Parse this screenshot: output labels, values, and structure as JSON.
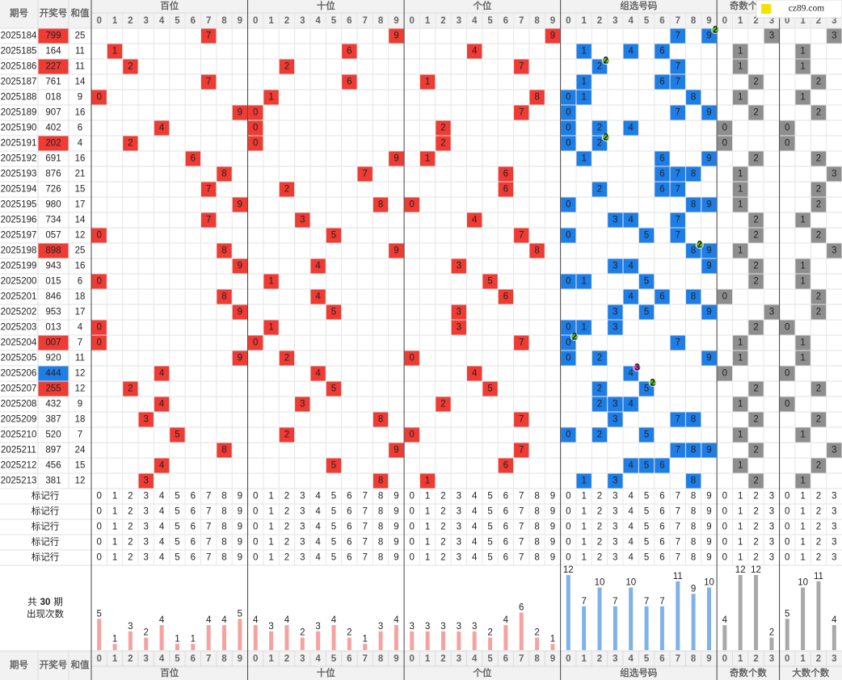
{
  "header": {
    "period": "期号",
    "number": "开奖号",
    "sum": "和值"
  },
  "groups": [
    {
      "name": "百位",
      "field": "hundreds",
      "digits": [
        0,
        1,
        2,
        3,
        4,
        5,
        6,
        7,
        8,
        9
      ],
      "counts": [
        5,
        1,
        3,
        2,
        4,
        1,
        1,
        4,
        4,
        5
      ],
      "color": "#ee3b34",
      "bar_color": "#f4a3a1",
      "text_color": "#e8554f"
    },
    {
      "name": "十位",
      "field": "tens",
      "digits": [
        0,
        1,
        2,
        3,
        4,
        5,
        6,
        7,
        8,
        9
      ],
      "counts": [
        4,
        3,
        4,
        2,
        3,
        4,
        2,
        1,
        3,
        4
      ],
      "color": "#ee3b34",
      "bar_color": "#f4a3a1",
      "text_color": "#e8554f"
    },
    {
      "name": "个位",
      "field": "units",
      "digits": [
        0,
        1,
        2,
        3,
        4,
        5,
        6,
        7,
        8,
        9
      ],
      "counts": [
        3,
        3,
        3,
        3,
        3,
        2,
        4,
        6,
        2,
        1
      ],
      "color": "#ee3b34",
      "bar_color": "#f4a3a1",
      "text_color": "#e8554f"
    },
    {
      "name": "组选号码",
      "field": "group",
      "digits": [
        0,
        1,
        2,
        3,
        4,
        5,
        6,
        7,
        8,
        9
      ],
      "counts": [
        12,
        7,
        10,
        7,
        10,
        7,
        7,
        11,
        9,
        10
      ],
      "color": "#1f7de6",
      "bar_color": "#7fb2ea",
      "text_color": "#2f86e0"
    },
    {
      "name": "奇数个数",
      "field": "odd",
      "digits": [
        0,
        1,
        2,
        3
      ],
      "counts": [
        4,
        12,
        12,
        2
      ],
      "color": "#8e8e8e",
      "bar_color": "#a9a9a9",
      "text_color": "#888888"
    },
    {
      "name": "大数个数",
      "field": "big",
      "digits": [
        0,
        1,
        2,
        3
      ],
      "counts": [
        5,
        10,
        11,
        4
      ],
      "color": "#8e8e8e",
      "bar_color": "#a9a9a9",
      "text_color": "#888888"
    }
  ],
  "highlight": {
    "pair": "#ee3b34",
    "triple": "#1f7de6",
    "badge_pair": "#5cc72a",
    "badge_triple": "#d63cc0"
  },
  "rows": [
    {
      "period": "2025184",
      "number": "799",
      "sum": 25,
      "hundreds": 7,
      "tens": 9,
      "units": 9,
      "group": [
        7,
        9
      ],
      "odd": 3,
      "big": 3,
      "repeat_digit": 9,
      "repeat_count": 2
    },
    {
      "period": "2025185",
      "number": "164",
      "sum": 11,
      "hundreds": 1,
      "tens": 6,
      "units": 4,
      "group": [
        1,
        4,
        6
      ],
      "odd": 1,
      "big": 1
    },
    {
      "period": "2025186",
      "number": "227",
      "sum": 11,
      "hundreds": 2,
      "tens": 2,
      "units": 7,
      "group": [
        2,
        7
      ],
      "odd": 1,
      "big": 1,
      "repeat_digit": 2,
      "repeat_count": 2
    },
    {
      "period": "2025187",
      "number": "761",
      "sum": 14,
      "hundreds": 7,
      "tens": 6,
      "units": 1,
      "group": [
        1,
        6,
        7
      ],
      "odd": 2,
      "big": 2
    },
    {
      "period": "2025188",
      "number": "018",
      "sum": 9,
      "hundreds": 0,
      "tens": 1,
      "units": 8,
      "group": [
        0,
        1,
        8
      ],
      "odd": 1,
      "big": 1
    },
    {
      "period": "2025189",
      "number": "907",
      "sum": 16,
      "hundreds": 9,
      "tens": 0,
      "units": 7,
      "group": [
        0,
        7,
        9
      ],
      "odd": 2,
      "big": 2
    },
    {
      "period": "2025190",
      "number": "402",
      "sum": 6,
      "hundreds": 4,
      "tens": 0,
      "units": 2,
      "group": [
        0,
        2,
        4
      ],
      "odd": 0,
      "big": 0
    },
    {
      "period": "2025191",
      "number": "202",
      "sum": 4,
      "hundreds": 2,
      "tens": 0,
      "units": 2,
      "group": [
        0,
        2
      ],
      "odd": 0,
      "big": 0,
      "repeat_digit": 2,
      "repeat_count": 2
    },
    {
      "period": "2025192",
      "number": "691",
      "sum": 16,
      "hundreds": 6,
      "tens": 9,
      "units": 1,
      "group": [
        1,
        6,
        9
      ],
      "odd": 2,
      "big": 2
    },
    {
      "period": "2025193",
      "number": "876",
      "sum": 21,
      "hundreds": 8,
      "tens": 7,
      "units": 6,
      "group": [
        6,
        7,
        8
      ],
      "odd": 1,
      "big": 3
    },
    {
      "period": "2025194",
      "number": "726",
      "sum": 15,
      "hundreds": 7,
      "tens": 2,
      "units": 6,
      "group": [
        2,
        6,
        7
      ],
      "odd": 1,
      "big": 2
    },
    {
      "period": "2025195",
      "number": "980",
      "sum": 17,
      "hundreds": 9,
      "tens": 8,
      "units": 0,
      "group": [
        0,
        8,
        9
      ],
      "odd": 1,
      "big": 2
    },
    {
      "period": "2025196",
      "number": "734",
      "sum": 14,
      "hundreds": 7,
      "tens": 3,
      "units": 4,
      "group": [
        3,
        4,
        7
      ],
      "odd": 2,
      "big": 1
    },
    {
      "period": "2025197",
      "number": "057",
      "sum": 12,
      "hundreds": 0,
      "tens": 5,
      "units": 7,
      "group": [
        0,
        5,
        7
      ],
      "odd": 2,
      "big": 2
    },
    {
      "period": "2025198",
      "number": "898",
      "sum": 25,
      "hundreds": 8,
      "tens": 9,
      "units": 8,
      "group": [
        8,
        9
      ],
      "odd": 1,
      "big": 3,
      "repeat_digit": 8,
      "repeat_count": 2
    },
    {
      "period": "2025199",
      "number": "943",
      "sum": 16,
      "hundreds": 9,
      "tens": 4,
      "units": 3,
      "group": [
        3,
        4,
        9
      ],
      "odd": 2,
      "big": 1
    },
    {
      "period": "2025200",
      "number": "015",
      "sum": 6,
      "hundreds": 0,
      "tens": 1,
      "units": 5,
      "group": [
        0,
        1,
        5
      ],
      "odd": 2,
      "big": 1
    },
    {
      "period": "2025201",
      "number": "846",
      "sum": 18,
      "hundreds": 8,
      "tens": 4,
      "units": 6,
      "group": [
        4,
        6,
        8
      ],
      "odd": 0,
      "big": 2
    },
    {
      "period": "2025202",
      "number": "953",
      "sum": 17,
      "hundreds": 9,
      "tens": 5,
      "units": 3,
      "group": [
        3,
        5,
        9
      ],
      "odd": 3,
      "big": 2
    },
    {
      "period": "2025203",
      "number": "013",
      "sum": 4,
      "hundreds": 0,
      "tens": 1,
      "units": 3,
      "group": [
        0,
        1,
        3
      ],
      "odd": 2,
      "big": 0
    },
    {
      "period": "2025204",
      "number": "007",
      "sum": 7,
      "hundreds": 0,
      "tens": 0,
      "units": 7,
      "group": [
        0,
        7
      ],
      "odd": 1,
      "big": 1,
      "repeat_digit": 0,
      "repeat_count": 2
    },
    {
      "period": "2025205",
      "number": "920",
      "sum": 11,
      "hundreds": 9,
      "tens": 2,
      "units": 0,
      "group": [
        0,
        2,
        9
      ],
      "odd": 1,
      "big": 1
    },
    {
      "period": "2025206",
      "number": "444",
      "sum": 12,
      "hundreds": 4,
      "tens": 4,
      "units": 4,
      "group": [
        4
      ],
      "odd": 0,
      "big": 0,
      "repeat_digit": 4,
      "repeat_count": 3
    },
    {
      "period": "2025207",
      "number": "255",
      "sum": 12,
      "hundreds": 2,
      "tens": 5,
      "units": 5,
      "group": [
        2,
        5
      ],
      "odd": 2,
      "big": 2,
      "repeat_digit": 5,
      "repeat_count": 2
    },
    {
      "period": "2025208",
      "number": "432",
      "sum": 9,
      "hundreds": 4,
      "tens": 3,
      "units": 2,
      "group": [
        2,
        3,
        4
      ],
      "odd": 1,
      "big": 0
    },
    {
      "period": "2025209",
      "number": "387",
      "sum": 18,
      "hundreds": 3,
      "tens": 8,
      "units": 7,
      "group": [
        3,
        7,
        8
      ],
      "odd": 2,
      "big": 2
    },
    {
      "period": "2025210",
      "number": "520",
      "sum": 7,
      "hundreds": 5,
      "tens": 2,
      "units": 0,
      "group": [
        0,
        2,
        5
      ],
      "odd": 1,
      "big": 1
    },
    {
      "period": "2025211",
      "number": "897",
      "sum": 24,
      "hundreds": 8,
      "tens": 9,
      "units": 7,
      "group": [
        7,
        8,
        9
      ],
      "odd": 2,
      "big": 3
    },
    {
      "period": "2025212",
      "number": "456",
      "sum": 15,
      "hundreds": 4,
      "tens": 5,
      "units": 6,
      "group": [
        4,
        5,
        6
      ],
      "odd": 1,
      "big": 2
    },
    {
      "period": "2025213",
      "number": "381",
      "sum": 12,
      "hundreds": 3,
      "tens": 8,
      "units": 1,
      "group": [
        1,
        3,
        8
      ],
      "odd": 2,
      "big": 1
    }
  ],
  "mark_rows": [
    "标记行",
    "标记行",
    "标记行",
    "标记行",
    "标记行"
  ],
  "stats_label": {
    "prefix": "共",
    "periods": 30,
    "suffix": "期",
    "caption": "出现次数"
  },
  "watermark": "cz89.com"
}
